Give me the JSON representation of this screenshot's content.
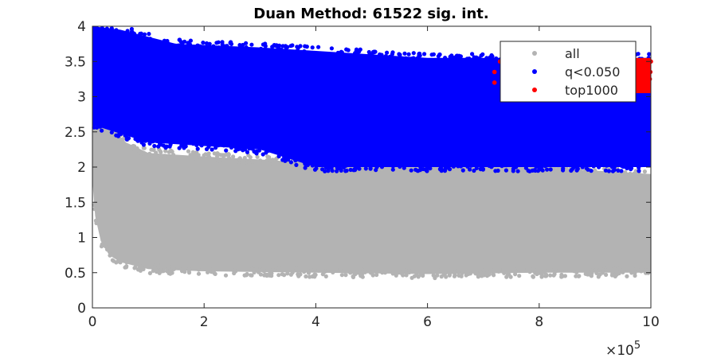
{
  "chart_data": {
    "type": "scatter",
    "title": "Duan Method: 61522 sig. int.",
    "xlabel": "",
    "ylabel": "",
    "xlim": [
      0,
      1000000
    ],
    "ylim": [
      0,
      4
    ],
    "x_ticks": [
      0,
      200000,
      400000,
      600000,
      800000,
      1000000
    ],
    "x_tick_labels": [
      "0",
      "2",
      "4",
      "6",
      "8",
      "10"
    ],
    "y_ticks": [
      0,
      0.5,
      1,
      1.5,
      2,
      2.5,
      3,
      3.5,
      4
    ],
    "y_tick_labels": [
      "0",
      "0.5",
      "1",
      "1.5",
      "2",
      "2.5",
      "3",
      "3.5",
      "4"
    ],
    "x_exponent_base": "×10",
    "x_exponent_power": "5",
    "grid": false,
    "legend_position": "top-right",
    "series": [
      {
        "name": "all",
        "color": "#b3b3b3",
        "region": {
          "x_range": [
            0,
            1000000
          ],
          "lower_bound": [
            [
              0,
              1.8
            ],
            [
              5000,
              1.3
            ],
            [
              15000,
              0.95
            ],
            [
              30000,
              0.75
            ],
            [
              50000,
              0.65
            ],
            [
              100000,
              0.55
            ],
            [
              200000,
              0.52
            ],
            [
              400000,
              0.5
            ],
            [
              600000,
              0.48
            ],
            [
              800000,
              0.5
            ],
            [
              1000000,
              0.5
            ]
          ],
          "upper_bound": [
            [
              0,
              3.2
            ],
            [
              10000,
              2.9
            ],
            [
              30000,
              2.6
            ],
            [
              60000,
              2.35
            ],
            [
              100000,
              2.2
            ],
            [
              200000,
              2.15
            ],
            [
              320000,
              2.1
            ],
            [
              400000,
              2.05
            ],
            [
              600000,
              2.0
            ],
            [
              800000,
              2.0
            ],
            [
              1000000,
              1.9
            ]
          ]
        }
      },
      {
        "name": "q<0.050",
        "color": "#0000ff",
        "region": {
          "x_range": [
            0,
            1000000
          ],
          "lower_bound": [
            [
              0,
              2.6
            ],
            [
              40000,
              2.5
            ],
            [
              100000,
              2.35
            ],
            [
              200000,
              2.3
            ],
            [
              300000,
              2.25
            ],
            [
              400000,
              2.0
            ],
            [
              600000,
              2.0
            ],
            [
              800000,
              2.0
            ],
            [
              1000000,
              2.0
            ]
          ],
          "upper_bound": [
            [
              0,
              4.0
            ],
            [
              50000,
              3.95
            ],
            [
              100000,
              3.85
            ],
            [
              150000,
              3.75
            ],
            [
              300000,
              3.7
            ],
            [
              500000,
              3.6
            ],
            [
              600000,
              3.55
            ],
            [
              800000,
              3.55
            ],
            [
              1000000,
              3.55
            ]
          ]
        }
      },
      {
        "name": "top1000",
        "color": "#ff0000",
        "points": [
          [
            720000,
            3.2
          ],
          [
            720000,
            3.35
          ],
          [
            730000,
            3.5
          ],
          [
            750000,
            3.3
          ],
          [
            780000,
            3.45
          ],
          [
            800000,
            3.5
          ],
          [
            830000,
            3.4
          ],
          [
            860000,
            3.5
          ],
          [
            880000,
            3.3
          ],
          [
            900000,
            3.5
          ],
          [
            920000,
            3.45
          ],
          [
            940000,
            3.5
          ],
          [
            960000,
            3.4
          ],
          [
            975000,
            3.5
          ],
          [
            985000,
            3.3
          ],
          [
            990000,
            3.2
          ],
          [
            995000,
            3.1
          ],
          [
            998000,
            3.25
          ],
          [
            999000,
            3.35
          ],
          [
            1000000,
            3.5
          ]
        ],
        "band": {
          "x_range": [
            940000,
            1000000
          ],
          "y_range": [
            3.05,
            3.55
          ]
        }
      }
    ]
  }
}
